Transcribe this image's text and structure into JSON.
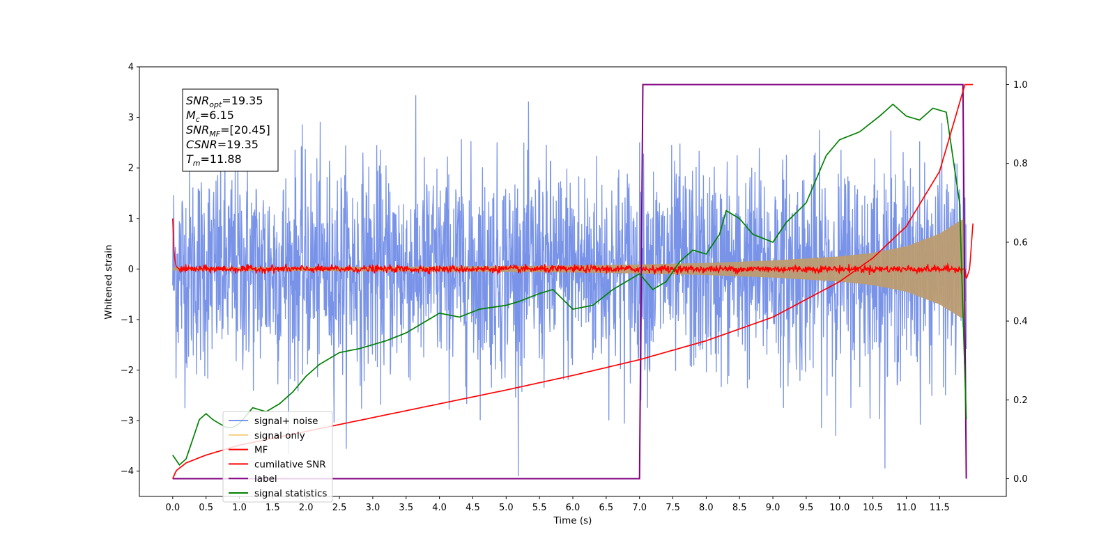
{
  "chart_data": {
    "type": "line",
    "xlabel": "Time (s)",
    "ylabel": "Whitened strain",
    "xlim": [
      -0.5,
      12.5
    ],
    "ylim": [
      -4.5,
      4.0
    ],
    "y2lim": [
      -0.045,
      1.045
    ],
    "x_ticks": [
      "0.0",
      "0.5",
      "1.0",
      "1.5",
      "2.0",
      "2.5",
      "3.0",
      "3.5",
      "4.0",
      "4.5",
      "5.0",
      "5.5",
      "6.0",
      "6.5",
      "7.0",
      "7.5",
      "8.0",
      "8.5",
      "9.0",
      "9.5",
      "10.0",
      "10.5",
      "11.0",
      "11.5"
    ],
    "y_ticks": [
      "4",
      "3",
      "2",
      "1",
      "0",
      "−1",
      "−2",
      "−3",
      "−4"
    ],
    "y2_ticks": [
      "1.0",
      "0.8",
      "0.6",
      "0.4",
      "0.2",
      "0.0"
    ],
    "annotation": [
      {
        "name": "SNR",
        "sub": "opt",
        "value": "=19.35"
      },
      {
        "name": "M",
        "sub": "c",
        "value": "=6.15"
      },
      {
        "name": "SNR",
        "sub": "MF",
        "value": "=[20.45]"
      },
      {
        "name": "CSNR",
        "sub": "",
        "value": "=19.35"
      },
      {
        "name": "T",
        "sub": "m",
        "value": "=11.88"
      }
    ],
    "legend_position": "lower left",
    "series": [
      {
        "name": "signal+ noise",
        "color": "#7893e8",
        "axis": "left",
        "noise_band": [
          -2.0,
          2.2
        ],
        "x_range": [
          0.0,
          11.9
        ]
      },
      {
        "name": "signal only",
        "color": "#bc9c72",
        "axis": "left",
        "envelope": {
          "x": [
            0.0,
            2.0,
            4.0,
            6.0,
            7.0,
            8.0,
            9.0,
            10.0,
            10.5,
            11.0,
            11.5,
            11.8,
            11.88
          ],
          "y": [
            0.03,
            0.04,
            0.05,
            0.07,
            0.09,
            0.12,
            0.17,
            0.25,
            0.32,
            0.45,
            0.7,
            0.95,
            1.0
          ]
        }
      },
      {
        "name": "MF",
        "color": "#ff0000",
        "axis": "left",
        "x": [
          0.0,
          0.02,
          0.05,
          0.1,
          11.88,
          11.9,
          11.95,
          12.0
        ],
        "y": [
          1.0,
          0.3,
          0.05,
          0.0,
          0.0,
          -0.2,
          0.0,
          0.9
        ]
      },
      {
        "name": "cumilative SNR",
        "color": "#ff0000",
        "axis": "right",
        "x": [
          0.0,
          0.05,
          0.2,
          0.5,
          1.0,
          2.0,
          3.0,
          4.0,
          5.0,
          6.0,
          7.0,
          8.0,
          9.0,
          10.0,
          10.5,
          11.0,
          11.5,
          11.88,
          12.0
        ],
        "y": [
          0.0,
          0.02,
          0.04,
          0.06,
          0.085,
          0.12,
          0.155,
          0.19,
          0.225,
          0.262,
          0.302,
          0.35,
          0.41,
          0.5,
          0.56,
          0.64,
          0.78,
          1.0,
          1.0
        ]
      },
      {
        "name": "label",
        "color": "#800080",
        "axis": "right",
        "x": [
          0.0,
          7.0,
          7.05,
          11.85,
          11.9
        ],
        "y": [
          0.0,
          0.0,
          1.0,
          1.0,
          0.0
        ]
      },
      {
        "name": "signal statistics",
        "color": "#008000",
        "axis": "right",
        "x": [
          0.0,
          0.1,
          0.2,
          0.3,
          0.4,
          0.5,
          0.6,
          0.7,
          0.8,
          0.9,
          1.0,
          1.2,
          1.4,
          1.6,
          1.8,
          2.0,
          2.2,
          2.5,
          2.8,
          3.0,
          3.2,
          3.5,
          3.8,
          4.0,
          4.3,
          4.6,
          5.0,
          5.2,
          5.5,
          5.7,
          6.0,
          6.3,
          6.6,
          6.8,
          7.0,
          7.2,
          7.4,
          7.6,
          7.8,
          8.0,
          8.2,
          8.3,
          8.5,
          8.7,
          9.0,
          9.2,
          9.5,
          9.8,
          10.0,
          10.3,
          10.6,
          10.8,
          11.0,
          11.2,
          11.4,
          11.6,
          11.8,
          11.9
        ],
        "y": [
          0.06,
          0.035,
          0.05,
          0.1,
          0.15,
          0.165,
          0.15,
          0.14,
          0.13,
          0.13,
          0.14,
          0.18,
          0.17,
          0.19,
          0.22,
          0.26,
          0.29,
          0.32,
          0.33,
          0.34,
          0.35,
          0.37,
          0.4,
          0.42,
          0.41,
          0.43,
          0.44,
          0.45,
          0.47,
          0.48,
          0.43,
          0.44,
          0.48,
          0.5,
          0.52,
          0.48,
          0.5,
          0.55,
          0.58,
          0.57,
          0.62,
          0.68,
          0.66,
          0.62,
          0.6,
          0.65,
          0.7,
          0.82,
          0.86,
          0.88,
          0.92,
          0.95,
          0.92,
          0.91,
          0.94,
          0.93,
          0.7,
          0.15
        ]
      }
    ]
  }
}
